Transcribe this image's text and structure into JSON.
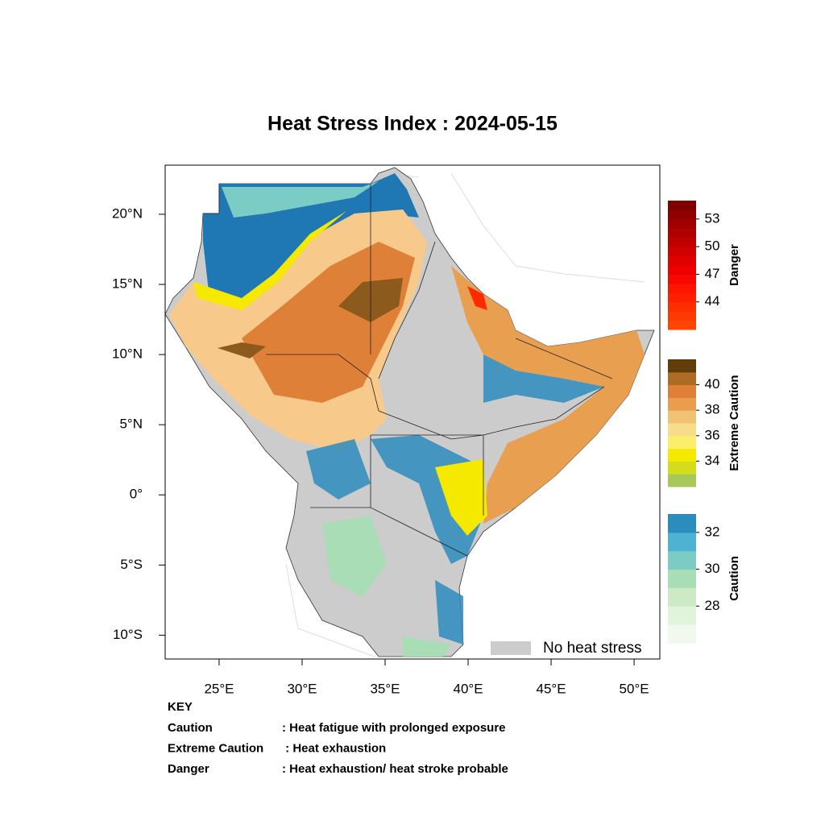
{
  "chart_data": {
    "type": "map",
    "title": "Heat Stress Index : 2024-05-15",
    "xlim": [
      21.75,
      51.55
    ],
    "ylim": [
      -11.7,
      23.5
    ],
    "xticks": [
      {
        "value": 25,
        "label": "25°E"
      },
      {
        "value": 30,
        "label": "30°E"
      },
      {
        "value": 35,
        "label": "35°E"
      },
      {
        "value": 40,
        "label": "40°E"
      },
      {
        "value": 45,
        "label": "45°E"
      },
      {
        "value": 50,
        "label": "50°E"
      }
    ],
    "yticks": [
      {
        "value": 20,
        "label": "20°N"
      },
      {
        "value": 15,
        "label": "15°N"
      },
      {
        "value": 10,
        "label": "10°N"
      },
      {
        "value": 5,
        "label": "5°N"
      },
      {
        "value": 0,
        "label": "0°"
      },
      {
        "value": -5,
        "label": "5°S"
      },
      {
        "value": -10,
        "label": "10°S"
      }
    ],
    "colorbars": [
      {
        "name": "Danger",
        "lim": [
          41,
          55
        ],
        "ticks": [
          53,
          50,
          47,
          44
        ],
        "colors": [
          "#ff4500",
          "#ff3a00",
          "#ff2e00",
          "#ff2000",
          "#ff1400",
          "#f80800",
          "#ee0000",
          "#e00000",
          "#d00000",
          "#c00000",
          "#b00000",
          "#a00000",
          "#900000",
          "#800000"
        ]
      },
      {
        "name": "Extreme Caution",
        "lim": [
          32,
          42
        ],
        "ticks": [
          40,
          38,
          36,
          34
        ],
        "colors": [
          "#a6c95a",
          "#d4dc1e",
          "#f5e900",
          "#f9ef6a",
          "#f7dc8c",
          "#f2c274",
          "#ea9e4d",
          "#df8038",
          "#ad6b23",
          "#633c0c"
        ]
      },
      {
        "name": "Caution",
        "lim": [
          26,
          33
        ],
        "ticks": [
          32,
          30,
          28
        ],
        "colors": [
          "#f1f9ee",
          "#e0f3db",
          "#cceac5",
          "#a8ddb5",
          "#7bccc4",
          "#4eb3d3",
          "#2b8cbe"
        ]
      }
    ],
    "no_stress": {
      "label": "No heat stress",
      "color": "#cccccc"
    },
    "key": {
      "title": "KEY",
      "rows": [
        [
          "Caution",
          ": Heat fatigue with prolonged exposure"
        ],
        [
          "Extreme Caution",
          " : Heat exhaustion"
        ],
        [
          "Danger",
          ": Heat exhaustion/ heat stroke probable"
        ]
      ]
    }
  }
}
